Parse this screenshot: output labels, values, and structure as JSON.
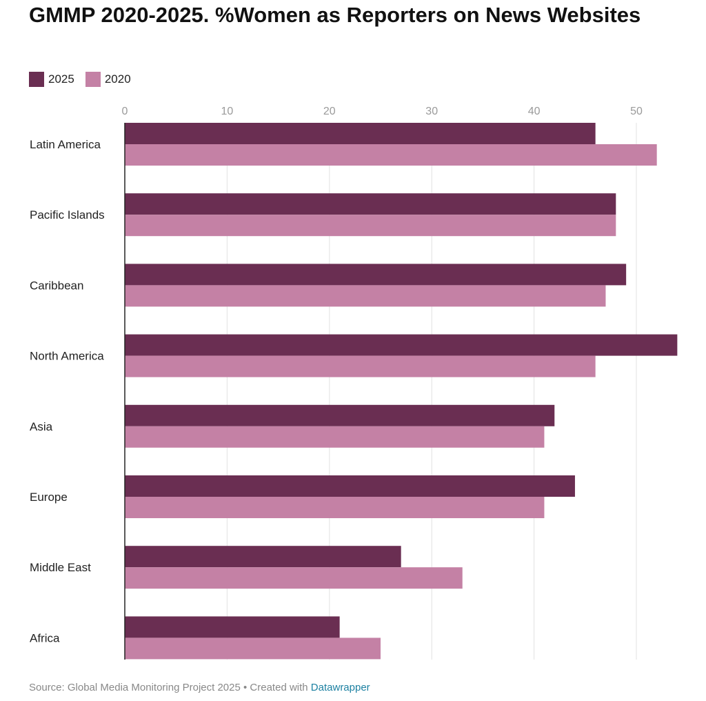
{
  "title": "GMMP 2020-2025. %Women as Reporters on News Websites",
  "legend": [
    {
      "label": "2025",
      "color": "#6a2e52"
    },
    {
      "label": "2020",
      "color": "#c481a5"
    }
  ],
  "footer": {
    "source": "Source: Global Media Monitoring Project 2025 • Created with ",
    "link": "Datawrapper"
  },
  "chart_data": {
    "type": "bar",
    "orientation": "horizontal",
    "title": "GMMP 2020-2025. %Women as Reporters on News Websites",
    "categories": [
      "Latin America",
      "Pacific Islands",
      "Caribbean",
      "North America",
      "Asia",
      "Europe",
      "Middle East",
      "Africa"
    ],
    "series": [
      {
        "name": "2025",
        "color": "#6a2e52",
        "values": [
          46,
          48,
          49,
          54,
          42,
          44,
          27,
          21
        ]
      },
      {
        "name": "2020",
        "color": "#c481a5",
        "values": [
          52,
          48,
          47,
          46,
          41,
          41,
          33,
          25
        ]
      }
    ],
    "xticks": [
      0,
      10,
      20,
      30,
      40,
      50
    ],
    "xlim": [
      0,
      55
    ],
    "grid": true,
    "legend_position": "top-left"
  }
}
